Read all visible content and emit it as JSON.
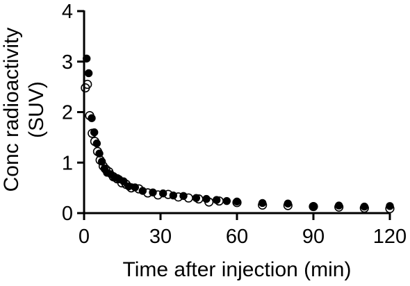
{
  "chart_data": {
    "type": "scatter",
    "xlabel": "Time after injection (min)",
    "ylabel_lines": [
      "Conc radioactivity",
      "(SUV)"
    ],
    "xlim": [
      0,
      120
    ],
    "ylim": [
      0,
      4
    ],
    "x_ticks": [
      0,
      30,
      60,
      90,
      120
    ],
    "y_ticks": [
      0,
      1,
      2,
      3,
      4
    ],
    "grid": false,
    "legend": "none",
    "series": [
      {
        "style": "open-circle",
        "color": "#000000",
        "points": [
          [
            0.5,
            2.48
          ],
          [
            1.3,
            2.55
          ],
          [
            2.2,
            1.93
          ],
          [
            3.2,
            1.58
          ],
          [
            4.2,
            1.42
          ],
          [
            5.3,
            1.22
          ],
          [
            6.3,
            1.05
          ],
          [
            7.5,
            0.93
          ],
          [
            8.5,
            0.87
          ],
          [
            9.7,
            0.82
          ],
          [
            11.5,
            0.72
          ],
          [
            13.0,
            0.68
          ],
          [
            14.8,
            0.6
          ],
          [
            16.5,
            0.57
          ],
          [
            18.5,
            0.5
          ],
          [
            21.5,
            0.48
          ],
          [
            25.0,
            0.4
          ],
          [
            29.0,
            0.36
          ],
          [
            33.0,
            0.37
          ],
          [
            37.0,
            0.32
          ],
          [
            41.0,
            0.3
          ],
          [
            45.0,
            0.28
          ],
          [
            49.0,
            0.22
          ],
          [
            53.0,
            0.24
          ],
          [
            60.0,
            0.21
          ],
          [
            70.0,
            0.16
          ],
          [
            80.0,
            0.15
          ],
          [
            90.0,
            0.13
          ],
          [
            100.0,
            0.12
          ],
          [
            110.0,
            0.1
          ],
          [
            120.0,
            0.09
          ]
        ]
      },
      {
        "style": "filled-circle",
        "color": "#000000",
        "points": [
          [
            1.0,
            3.06
          ],
          [
            1.8,
            2.77
          ],
          [
            3.0,
            1.88
          ],
          [
            4.0,
            1.6
          ],
          [
            5.0,
            1.38
          ],
          [
            6.0,
            1.18
          ],
          [
            7.0,
            1.02
          ],
          [
            8.0,
            0.88
          ],
          [
            9.0,
            0.8
          ],
          [
            10.5,
            0.77
          ],
          [
            12.0,
            0.7
          ],
          [
            13.8,
            0.67
          ],
          [
            15.5,
            0.63
          ],
          [
            17.5,
            0.53
          ],
          [
            20.0,
            0.51
          ],
          [
            23.0,
            0.44
          ],
          [
            27.0,
            0.41
          ],
          [
            31.0,
            0.39
          ],
          [
            35.0,
            0.35
          ],
          [
            39.0,
            0.34
          ],
          [
            44.0,
            0.3
          ],
          [
            48.0,
            0.28
          ],
          [
            52.0,
            0.26
          ],
          [
            56.0,
            0.24
          ],
          [
            60.0,
            0.23
          ],
          [
            70.0,
            0.2
          ],
          [
            80.0,
            0.19
          ],
          [
            90.0,
            0.14
          ],
          [
            100.0,
            0.15
          ],
          [
            110.0,
            0.13
          ],
          [
            120.0,
            0.14
          ]
        ]
      }
    ]
  }
}
